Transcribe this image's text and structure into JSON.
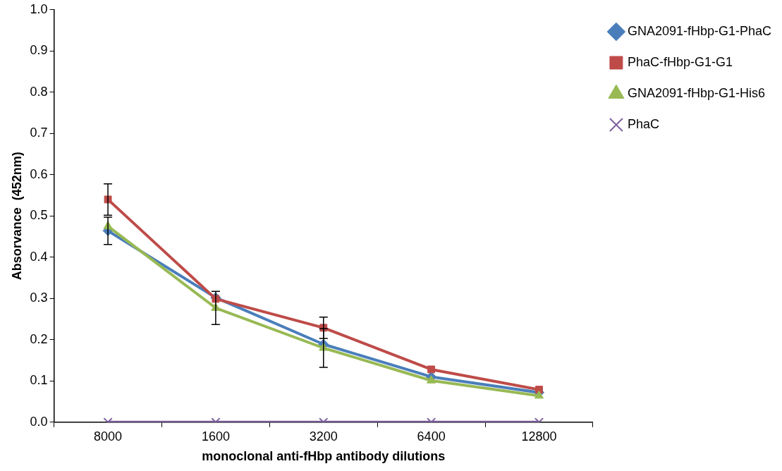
{
  "chart_data": {
    "type": "line",
    "xlabel": "monoclonal anti-fHbp antibody dilutions",
    "ylabel": "Absorvance  (452nm)",
    "categories": [
      "8000",
      "1600",
      "3200",
      "6400",
      "12800"
    ],
    "series": [
      {
        "name": "GNA2091-fHbp-G1-PhaC",
        "color": "#4a7ebb",
        "marker": "diamond",
        "values": [
          0.464,
          0.302,
          0.189,
          0.11,
          0.072
        ],
        "errors": [
          0.033,
          null,
          null,
          null,
          null
        ]
      },
      {
        "name": "PhaC-fHbp-G1-G1",
        "color": "#be4b48",
        "marker": "square",
        "values": [
          0.54,
          0.299,
          0.229,
          0.128,
          0.079
        ],
        "errors": [
          0.038,
          null,
          0.026,
          null,
          null
        ]
      },
      {
        "name": "GNA2091-fHbp-G1-His6",
        "color": "#98b954",
        "marker": "triangle",
        "values": [
          0.475,
          0.277,
          0.18,
          0.101,
          0.064
        ],
        "errors": [
          null,
          0.04,
          0.047,
          null,
          null
        ]
      },
      {
        "name": "PhaC",
        "color": "#7d60a0",
        "marker": "cross",
        "values": [
          0,
          0,
          0,
          0,
          0
        ]
      }
    ],
    "ylim": [
      0,
      1
    ],
    "yticks": [
      {
        "value": 0,
        "label": "0.0"
      },
      0.1,
      0.2,
      0.3,
      0.4,
      0.5,
      0.6,
      0.7,
      0.8,
      0.9,
      {
        "value": 1,
        "label": "1.0"
      }
    ],
    "grid": false,
    "legend": "top right"
  }
}
